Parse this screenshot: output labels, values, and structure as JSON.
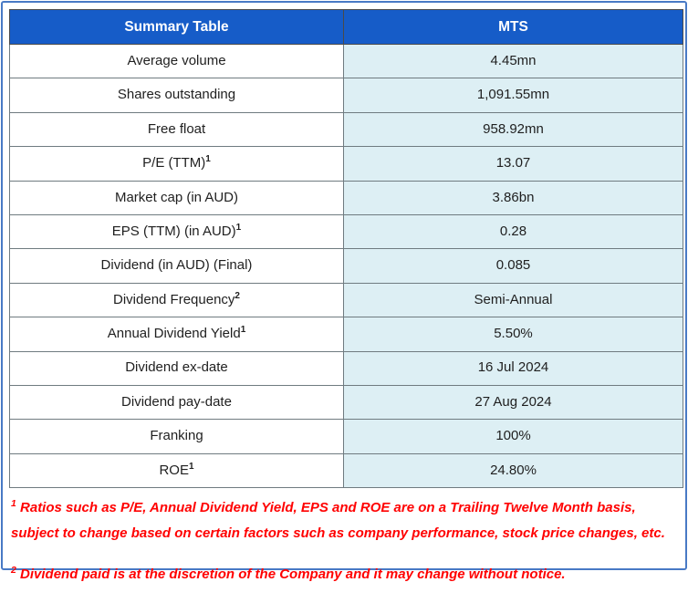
{
  "colors": {
    "header_bg": "#165cc8",
    "header_text": "#ffffff",
    "value_cell_bg": "#ddeff4",
    "label_cell_bg": "#ffffff",
    "grid_border": "#6f7b80",
    "outer_border": "#4879c5",
    "footnote_text": "#ff0000",
    "cell_text": "#1f1f1f"
  },
  "header": {
    "col1": "Summary Table",
    "col2": "MTS"
  },
  "table": {
    "rows": [
      {
        "label": "Average volume",
        "sup": "",
        "value": "4.45mn"
      },
      {
        "label": "Shares outstanding",
        "sup": "",
        "value": "1,091.55mn"
      },
      {
        "label": "Free float",
        "sup": "",
        "value": "958.92mn"
      },
      {
        "label": "P/E (TTM)",
        "sup": "1",
        "value": "13.07"
      },
      {
        "label": "Market cap (in AUD)",
        "sup": "",
        "value": "3.86bn"
      },
      {
        "label": "EPS (TTM) (in AUD)",
        "sup": "1",
        "value": "0.28"
      },
      {
        "label": "Dividend (in AUD) (Final)",
        "sup": "",
        "value": "0.085"
      },
      {
        "label": "Dividend Frequency",
        "sup": "2",
        "value": "Semi-Annual"
      },
      {
        "label": "Annual Dividend Yield",
        "sup": "1",
        "value": "5.50%"
      },
      {
        "label": "Dividend ex-date",
        "sup": "",
        "value": "16 Jul 2024"
      },
      {
        "label": "Dividend pay-date",
        "sup": "",
        "value": "27 Aug 2024"
      },
      {
        "label": "Franking",
        "sup": "",
        "value": "100%"
      },
      {
        "label": "ROE",
        "sup": "1",
        "value": "24.80%"
      }
    ]
  },
  "footnotes": [
    {
      "sup": "1",
      "text": "Ratios such as P/E, Annual Dividend Yield, EPS and ROE are on a Trailing Twelve Month basis, subject to change based on certain factors such as company performance, stock price changes, etc."
    },
    {
      "sup": "2",
      "text": "Dividend paid is at the discretion of the Company and it may change without notice."
    }
  ]
}
